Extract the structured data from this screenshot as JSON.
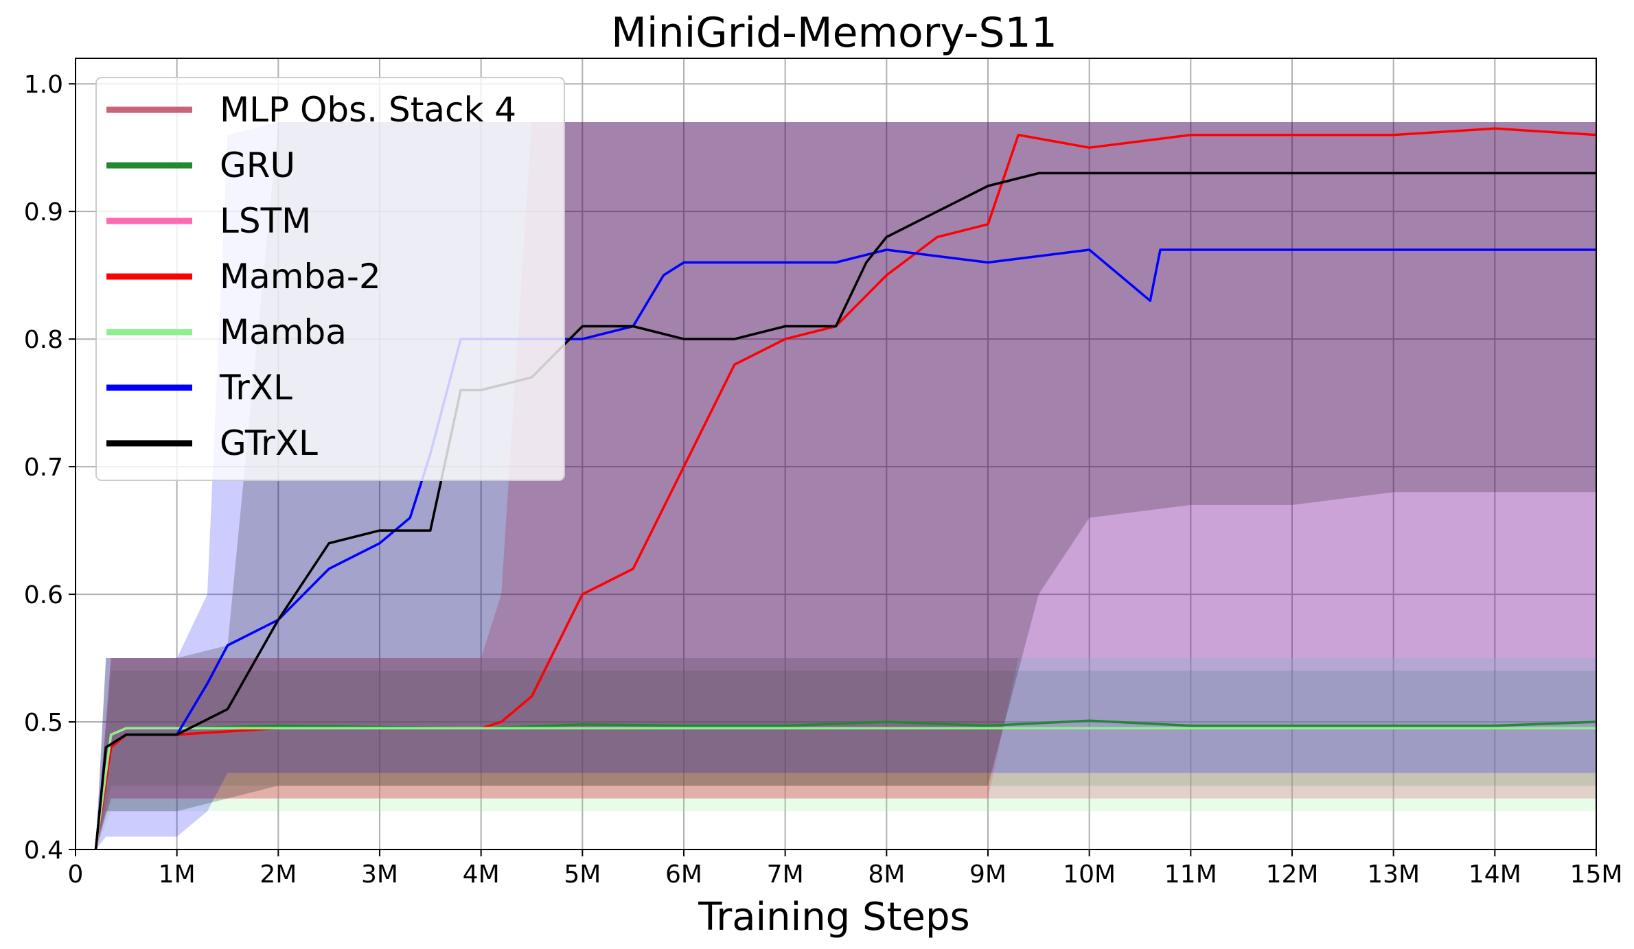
{
  "chart_data": {
    "type": "line",
    "title": "MiniGrid-Memory-S11",
    "xlabel": "Training Steps",
    "ylabel": "",
    "xlim": [
      0,
      15
    ],
    "ylim": [
      0.4,
      1.02
    ],
    "x_unit": "M",
    "xticks": [
      0,
      1,
      2,
      3,
      4,
      5,
      6,
      7,
      8,
      9,
      10,
      11,
      12,
      13,
      14,
      15
    ],
    "xtick_labels": [
      "0",
      "1M",
      "2M",
      "3M",
      "4M",
      "5M",
      "6M",
      "7M",
      "8M",
      "9M",
      "10M",
      "11M",
      "12M",
      "13M",
      "14M",
      "15M"
    ],
    "yticks": [
      0.4,
      0.5,
      0.6,
      0.7,
      0.8,
      0.9,
      1.0
    ],
    "ytick_labels": [
      "0.4",
      "0.5",
      "0.6",
      "0.7",
      "0.8",
      "0.9",
      "1.0"
    ],
    "grid": true,
    "legend_position": "top-left",
    "series": [
      {
        "name": "MLP Obs. Stack 4",
        "color": "#c86478",
        "x": [
          0.2,
          0.35,
          0.5,
          1,
          2,
          3,
          4,
          5,
          6,
          7,
          8,
          9,
          10,
          11,
          12,
          13,
          14,
          15
        ],
        "y": [
          0.4,
          0.49,
          0.495,
          0.495,
          0.495,
          0.495,
          0.495,
          0.495,
          0.495,
          0.495,
          0.495,
          0.495,
          0.495,
          0.495,
          0.495,
          0.495,
          0.495,
          0.495
        ],
        "band_lower": [
          0.4,
          0.44,
          0.44,
          0.44,
          0.44,
          0.44,
          0.44,
          0.44,
          0.44,
          0.44,
          0.44,
          0.44,
          0.44,
          0.44,
          0.44,
          0.44,
          0.44,
          0.44
        ],
        "band_upper": [
          0.4,
          0.55,
          0.55,
          0.55,
          0.55,
          0.55,
          0.55,
          0.55,
          0.55,
          0.55,
          0.55,
          0.55,
          0.55,
          0.55,
          0.55,
          0.55,
          0.55,
          0.55
        ]
      },
      {
        "name": "GRU",
        "color": "#228833",
        "x": [
          0.2,
          0.35,
          0.5,
          1,
          2,
          3,
          4,
          5,
          6,
          7,
          8,
          9,
          10,
          11,
          12,
          13,
          14,
          15
        ],
        "y": [
          0.4,
          0.49,
          0.495,
          0.495,
          0.497,
          0.496,
          0.495,
          0.498,
          0.497,
          0.497,
          0.5,
          0.497,
          0.501,
          0.497,
          0.497,
          0.497,
          0.497,
          0.5
        ],
        "band_lower": [
          0.4,
          0.45,
          0.45,
          0.45,
          0.45,
          0.45,
          0.45,
          0.45,
          0.45,
          0.45,
          0.45,
          0.45,
          0.45,
          0.45,
          0.45,
          0.45,
          0.45,
          0.45
        ],
        "band_upper": [
          0.4,
          0.54,
          0.54,
          0.54,
          0.54,
          0.54,
          0.54,
          0.54,
          0.54,
          0.54,
          0.54,
          0.54,
          0.54,
          0.54,
          0.54,
          0.54,
          0.54,
          0.54
        ]
      },
      {
        "name": "LSTM",
        "color": "#ff69b4",
        "x": [
          0.2,
          0.35,
          0.5,
          1,
          2,
          3,
          4,
          5,
          6,
          7,
          8,
          9,
          10,
          11,
          12,
          13,
          14,
          15
        ],
        "y": [
          0.4,
          0.49,
          0.495,
          0.495,
          0.495,
          0.495,
          0.495,
          0.495,
          0.495,
          0.495,
          0.495,
          0.495,
          0.495,
          0.495,
          0.495,
          0.495,
          0.495,
          0.495
        ],
        "band_lower": [
          0.4,
          0.44,
          0.44,
          0.44,
          0.44,
          0.44,
          0.44,
          0.44,
          0.44,
          0.44,
          0.44,
          0.44,
          0.44,
          0.44,
          0.44,
          0.44,
          0.44,
          0.44
        ],
        "band_upper": [
          0.4,
          0.55,
          0.55,
          0.55,
          0.55,
          0.55,
          0.55,
          0.55,
          0.55,
          0.55,
          0.55,
          0.55,
          0.55,
          0.55,
          0.55,
          0.55,
          0.55,
          0.55
        ]
      },
      {
        "name": "Mamba-2",
        "color": "#ff0000",
        "x": [
          0.2,
          0.35,
          0.5,
          1,
          2,
          3,
          4,
          4.2,
          4.5,
          5,
          5.5,
          6,
          6.5,
          7,
          7.5,
          8,
          8.5,
          9,
          9.3,
          10,
          11,
          12,
          13,
          14,
          15
        ],
        "y": [
          0.4,
          0.48,
          0.49,
          0.49,
          0.495,
          0.495,
          0.495,
          0.5,
          0.52,
          0.6,
          0.62,
          0.7,
          0.78,
          0.8,
          0.81,
          0.85,
          0.88,
          0.89,
          0.96,
          0.95,
          0.96,
          0.96,
          0.96,
          0.965,
          0.96
        ],
        "band_lower": [
          0.4,
          0.44,
          0.44,
          0.44,
          0.44,
          0.44,
          0.44,
          0.44,
          0.44,
          0.44,
          0.44,
          0.44,
          0.44,
          0.44,
          0.44,
          0.44,
          0.44,
          0.44,
          0.55,
          0.55,
          0.55,
          0.55,
          0.55,
          0.55,
          0.55
        ],
        "band_upper": [
          0.4,
          0.55,
          0.55,
          0.55,
          0.55,
          0.55,
          0.55,
          0.6,
          0.97,
          0.97,
          0.97,
          0.97,
          0.97,
          0.97,
          0.97,
          0.97,
          0.97,
          0.97,
          0.97,
          0.97,
          0.97,
          0.97,
          0.97,
          0.97,
          0.97
        ]
      },
      {
        "name": "Mamba",
        "color": "#90ee90",
        "x": [
          0.2,
          0.35,
          0.5,
          1,
          2,
          3,
          4,
          5,
          6,
          7,
          8,
          9,
          10,
          11,
          12,
          13,
          14,
          15
        ],
        "y": [
          0.4,
          0.49,
          0.495,
          0.495,
          0.495,
          0.495,
          0.495,
          0.495,
          0.495,
          0.495,
          0.495,
          0.495,
          0.495,
          0.495,
          0.495,
          0.495,
          0.495,
          0.495
        ],
        "band_lower": [
          0.4,
          0.43,
          0.43,
          0.43,
          0.43,
          0.43,
          0.43,
          0.43,
          0.43,
          0.43,
          0.43,
          0.43,
          0.43,
          0.43,
          0.43,
          0.43,
          0.43,
          0.43
        ],
        "band_upper": [
          0.4,
          0.55,
          0.55,
          0.55,
          0.55,
          0.55,
          0.55,
          0.55,
          0.55,
          0.55,
          0.55,
          0.55,
          0.55,
          0.55,
          0.55,
          0.55,
          0.55,
          0.55
        ]
      },
      {
        "name": "TrXL",
        "color": "#0000ff",
        "x": [
          0.2,
          0.3,
          0.5,
          1,
          1.3,
          1.5,
          2,
          2.5,
          3,
          3.3,
          3.5,
          3.8,
          4,
          4.5,
          5,
          5.5,
          5.8,
          6,
          6.5,
          7,
          7.5,
          8,
          9,
          10,
          10.6,
          10.7,
          11,
          12,
          13,
          14,
          15
        ],
        "y": [
          0.4,
          0.48,
          0.49,
          0.49,
          0.53,
          0.56,
          0.58,
          0.62,
          0.64,
          0.66,
          0.71,
          0.8,
          0.8,
          0.8,
          0.8,
          0.81,
          0.85,
          0.86,
          0.86,
          0.86,
          0.86,
          0.87,
          0.86,
          0.87,
          0.83,
          0.87,
          0.87,
          0.87,
          0.87,
          0.87,
          0.87
        ],
        "band_lower": [
          0.4,
          0.41,
          0.41,
          0.41,
          0.43,
          0.46,
          0.46,
          0.46,
          0.46,
          0.46,
          0.46,
          0.46,
          0.46,
          0.46,
          0.46,
          0.46,
          0.46,
          0.46,
          0.46,
          0.46,
          0.46,
          0.46,
          0.46,
          0.46,
          0.46,
          0.46,
          0.46,
          0.46,
          0.46,
          0.46,
          0.46
        ],
        "band_upper": [
          0.4,
          0.55,
          0.55,
          0.55,
          0.6,
          0.96,
          0.97,
          0.97,
          0.97,
          0.97,
          0.97,
          0.97,
          0.97,
          0.97,
          0.97,
          0.97,
          0.97,
          0.97,
          0.97,
          0.97,
          0.97,
          0.97,
          0.97,
          0.97,
          0.97,
          0.97,
          0.97,
          0.97,
          0.97,
          0.97,
          0.97
        ]
      },
      {
        "name": "GTrXL",
        "color": "#000000",
        "x": [
          0.2,
          0.3,
          0.5,
          1,
          1.5,
          2,
          2.5,
          3,
          3.5,
          3.8,
          4,
          4.5,
          5,
          5.5,
          6,
          6.5,
          7,
          7.5,
          7.8,
          8,
          8.5,
          9,
          9.5,
          10,
          11,
          12,
          13,
          14,
          15
        ],
        "y": [
          0.4,
          0.48,
          0.49,
          0.49,
          0.51,
          0.58,
          0.64,
          0.65,
          0.65,
          0.76,
          0.76,
          0.77,
          0.81,
          0.81,
          0.8,
          0.8,
          0.81,
          0.81,
          0.86,
          0.88,
          0.9,
          0.92,
          0.93,
          0.93,
          0.93,
          0.93,
          0.93,
          0.93,
          0.93
        ],
        "band_lower": [
          0.4,
          0.43,
          0.43,
          0.43,
          0.44,
          0.45,
          0.45,
          0.45,
          0.45,
          0.45,
          0.45,
          0.45,
          0.45,
          0.45,
          0.45,
          0.45,
          0.45,
          0.45,
          0.45,
          0.45,
          0.45,
          0.45,
          0.6,
          0.66,
          0.67,
          0.67,
          0.68,
          0.68,
          0.68
        ],
        "band_upper": [
          0.4,
          0.55,
          0.55,
          0.55,
          0.56,
          0.97,
          0.97,
          0.97,
          0.97,
          0.97,
          0.97,
          0.97,
          0.97,
          0.97,
          0.97,
          0.97,
          0.97,
          0.97,
          0.97,
          0.97,
          0.97,
          0.97,
          0.97,
          0.97,
          0.97,
          0.97,
          0.97,
          0.97,
          0.97
        ]
      }
    ]
  }
}
